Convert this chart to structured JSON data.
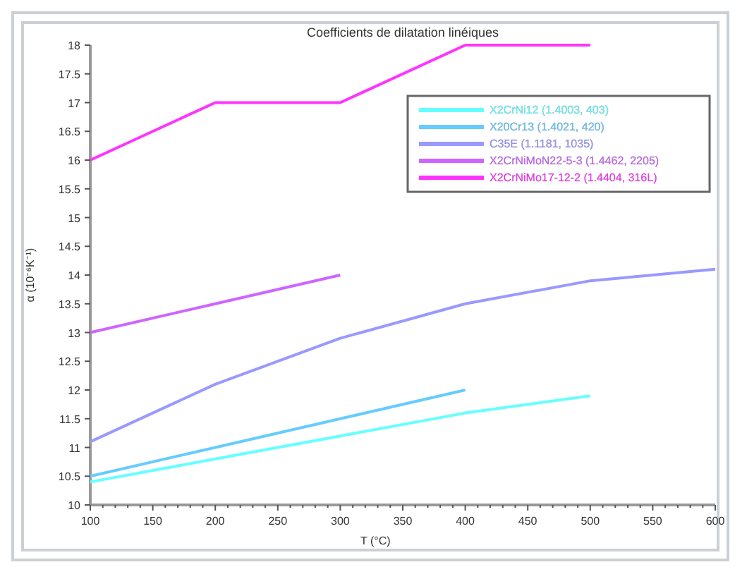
{
  "chart_data": {
    "type": "line",
    "title": "Coefficients de dilatation linéiques",
    "xlabel": "T (°C)",
    "ylabel": "α (10⁻⁶K⁻¹)",
    "xlim": [
      100,
      600
    ],
    "xticks": [
      100,
      150,
      200,
      250,
      300,
      350,
      400,
      450,
      500,
      550,
      600
    ],
    "ylim": [
      10,
      18
    ],
    "yticks": [
      10,
      10.5,
      11,
      11.5,
      12,
      12.5,
      13,
      13.5,
      14,
      14.5,
      15,
      15.5,
      16,
      16.5,
      17,
      17.5,
      18
    ],
    "grid": false,
    "legend": "top right",
    "marker": "none",
    "line_style": "solid",
    "series": [
      {
        "name": "X2CrNi12 (1.4003, 403)",
        "color": "#66ffff",
        "x": [
          100,
          200,
          300,
          400,
          500
        ],
        "values": [
          10.4,
          10.8,
          11.2,
          11.6,
          11.9
        ]
      },
      {
        "name": "X20Cr13 (1.4021, 420)",
        "color": "#66ccff",
        "x": [
          100,
          200,
          300,
          400
        ],
        "values": [
          10.5,
          11,
          11.5,
          12
        ]
      },
      {
        "name": "C35E (1.1181, 1035)",
        "color": "#9999ff",
        "x": [
          100,
          200,
          300,
          400,
          500,
          600
        ],
        "values": [
          11.1,
          12.1,
          12.9,
          13.5,
          13.9,
          14.1
        ]
      },
      {
        "name": "X2CrNiMoN22-5-3 (1.4462, 2205)",
        "color": "#cc66ff",
        "x": [
          100,
          200,
          300
        ],
        "values": [
          13,
          13.5,
          14
        ]
      },
      {
        "name": "X2CrNiMo17-12-2 (1.4404, 316L)",
        "color": "#ff33ff",
        "x": [
          100,
          200,
          300,
          400,
          500
        ],
        "values": [
          16,
          17,
          17,
          18,
          18
        ]
      }
    ]
  }
}
